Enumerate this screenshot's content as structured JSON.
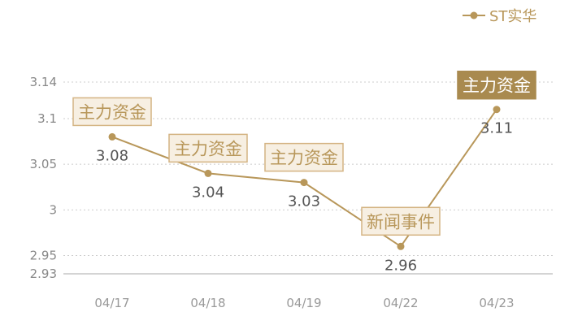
{
  "chart_data": {
    "type": "line",
    "x": [
      "04/17",
      "04/18",
      "04/19",
      "04/22",
      "04/23"
    ],
    "yticks": [
      2.93,
      2.95,
      3,
      3.05,
      3.1,
      3.14
    ],
    "ytick_labels": [
      "2.93",
      "2.95",
      "3",
      "3.05",
      "3.1",
      "3.14"
    ],
    "ylim": [
      2.93,
      3.14
    ],
    "grid": true,
    "legend_position": "top-right",
    "series": [
      {
        "name": "ST实华",
        "color": "#B8975A",
        "values": [
          3.08,
          3.04,
          3.03,
          2.96,
          3.11
        ],
        "data_labels": [
          "3.08",
          "3.04",
          "3.03",
          "2.96",
          "3.11"
        ]
      }
    ],
    "annotations": [
      {
        "index": 0,
        "text": "主力资金",
        "style": "outline"
      },
      {
        "index": 1,
        "text": "主力资金",
        "style": "outline"
      },
      {
        "index": 2,
        "text": "主力资金",
        "style": "outline"
      },
      {
        "index": 3,
        "text": "新闻事件",
        "style": "outline"
      },
      {
        "index": 4,
        "text": "主力资金",
        "style": "filled"
      }
    ],
    "colors": {
      "line": "#B8975A",
      "grid": "#cccccc",
      "axis": "#aaaaaa",
      "annotation_fill": "#F7EFE2",
      "annotation_border": "#D4B483",
      "annotation_text": "#B8975A",
      "filled_fill": "#A98A4F",
      "filled_text": "#ffffff"
    }
  }
}
